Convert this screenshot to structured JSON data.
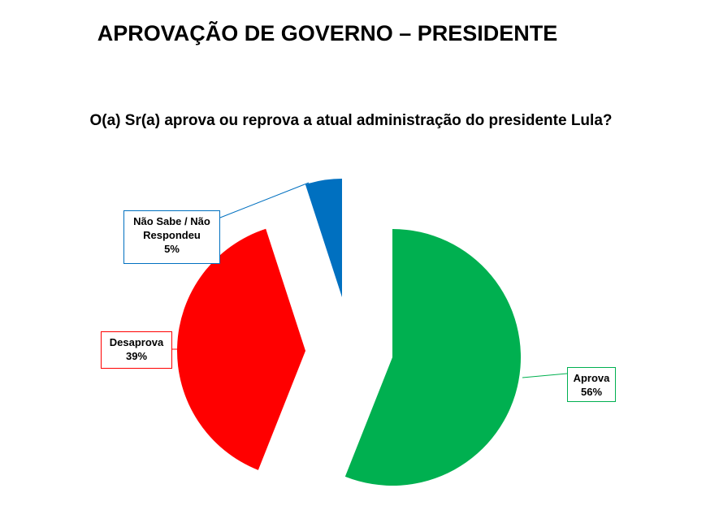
{
  "chart_data": {
    "type": "pie",
    "title": "APROVAÇÃO DE GOVERNO – PRESIDENTE",
    "subtitle": "O(a) Sr(a) aprova ou reprova a atual administração do presidente Lula?",
    "categories": [
      "Aprova",
      "Desaprova",
      "Não Sabe / Não Respondeu"
    ],
    "values": [
      56,
      39,
      5
    ],
    "value_labels": [
      "56%",
      "39%",
      "5%"
    ],
    "colors": [
      "#00b050",
      "#ff0000",
      "#0070c0"
    ]
  }
}
